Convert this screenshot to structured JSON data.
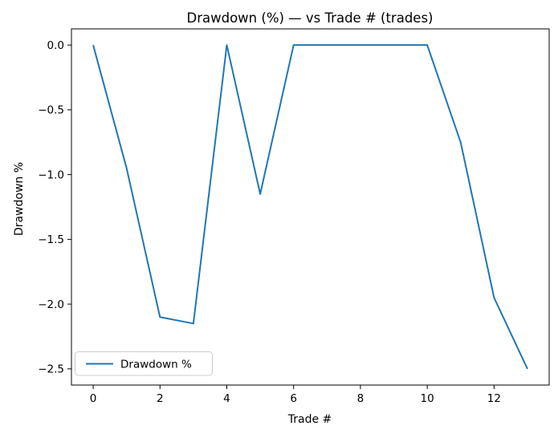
{
  "figure": {
    "background": "#ffffff",
    "spine_color": "#000000",
    "text_color": "#000000"
  },
  "chart_data": {
    "type": "line",
    "title": "Drawdown (%) — vs Trade # (trades)",
    "xlabel": "Trade #",
    "ylabel": "Drawdown %",
    "x": [
      0,
      1,
      2,
      3,
      4,
      5,
      6,
      7,
      8,
      9,
      10,
      11,
      12,
      13
    ],
    "series": [
      {
        "name": "Drawdown %",
        "color": "#1f77b4",
        "values": [
          0.0,
          -0.95,
          -2.1,
          -2.15,
          0.0,
          -1.15,
          0.0,
          0.0,
          0.0,
          0.0,
          0.0,
          -0.75,
          -1.95,
          -2.5
        ]
      }
    ],
    "xlim": [
      -0.65,
      13.65
    ],
    "ylim": [
      -2.625,
      0.125
    ],
    "xticks": [
      0,
      2,
      4,
      6,
      8,
      10,
      12
    ],
    "xtick_labels": [
      "0",
      "2",
      "4",
      "6",
      "8",
      "10",
      "12"
    ],
    "yticks": [
      0.0,
      -0.5,
      -1.0,
      -1.5,
      -2.0,
      -2.5
    ],
    "ytick_labels": [
      "0.0",
      "−0.5",
      "−1.0",
      "−1.5",
      "−2.0",
      "−2.5"
    ],
    "grid": false,
    "legend": {
      "position": "lower left",
      "entries": [
        "Drawdown %"
      ]
    }
  }
}
